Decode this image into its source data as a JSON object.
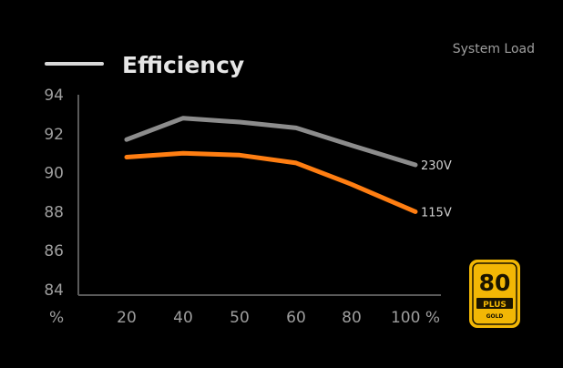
{
  "chart_data": {
    "type": "line",
    "title": "Efficiency",
    "x_axis_title": "System Load",
    "x_unit": "%",
    "x_end_unit": "%",
    "categories": [
      "20",
      "40",
      "50",
      "60",
      "80",
      "100"
    ],
    "ylim": [
      84,
      94
    ],
    "y_ticks": [
      94,
      92,
      90,
      88,
      86,
      84
    ],
    "grid": false,
    "series": [
      {
        "name": "230V",
        "color": "#8c8c8c",
        "values": [
          91.7,
          92.8,
          92.6,
          92.3,
          91.4,
          90.4
        ]
      },
      {
        "name": "115V",
        "color": "#ff7e12",
        "values": [
          90.8,
          91.0,
          90.9,
          90.5,
          89.4,
          88.0
        ]
      }
    ]
  },
  "legend": {
    "title": "Efficiency",
    "swatch_color": "#d8d8d8",
    "text_color": "#e6e6e6"
  },
  "colors": {
    "background": "#000000",
    "axis": "#5a5a5a",
    "tick_text": "#9e9e9e",
    "label_text": "#d0d0d0"
  },
  "badge": {
    "number": "80",
    "plus": "PLUS",
    "tier": "GOLD",
    "fill": "#f2b705",
    "ink": "#1a1400"
  }
}
